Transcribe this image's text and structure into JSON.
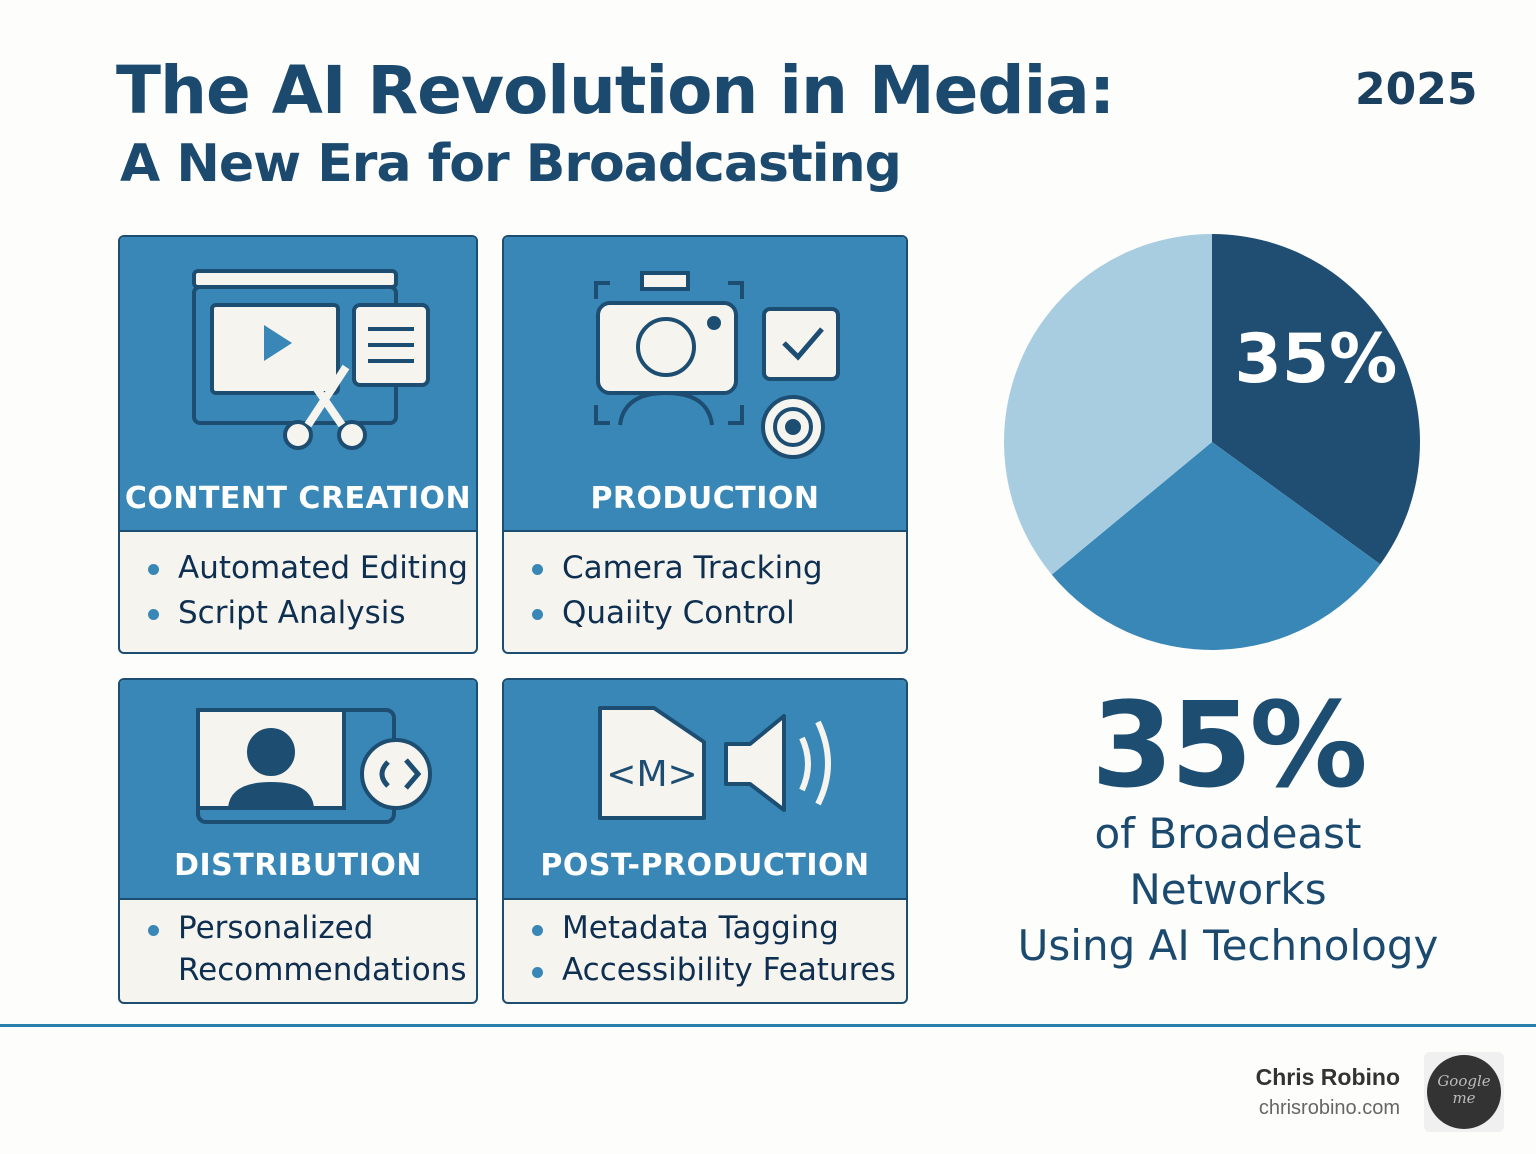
{
  "header": {
    "title": "The AI Revolution in Media:",
    "subtitle": "A New Era for Broadcasting",
    "year": "2025"
  },
  "cards": [
    {
      "label": "CONTENT CREATION",
      "icon": "video-edit-scissors-icon",
      "items": [
        "Automated Editing",
        "Script Analysis"
      ]
    },
    {
      "label": "PRODUCTION",
      "icon": "camera-checkbox-target-icon",
      "items": [
        "Camera Tracking",
        "Quaiity Control"
      ]
    },
    {
      "label": "DISTRIBUTION",
      "icon": "screen-user-share-icon",
      "items": [
        "Personalized Recommendations"
      ]
    },
    {
      "label": "POST-PRODUCTION",
      "icon": "metadata-speaker-icon",
      "items": [
        "Metadata Tagging",
        "Accessibility Features"
      ]
    }
  ],
  "stat": {
    "value": "35%",
    "caption_line1": "of Broadeast Networks",
    "caption_line2": "Using AI Technology"
  },
  "chart_data": {
    "type": "pie",
    "values": [
      35,
      29,
      36
    ],
    "data_labels": [
      "35%",
      "",
      ""
    ],
    "colors": [
      "#1f4e72",
      "#3987b6",
      "#a9cde0"
    ]
  },
  "footer": {
    "name": "Chris Robino",
    "url": "chrisrobino.com",
    "avatar_text": "Google me"
  },
  "colors": {
    "primary": "#1b4a6e",
    "card": "#3987b6",
    "accent_line": "#2b7fab"
  }
}
